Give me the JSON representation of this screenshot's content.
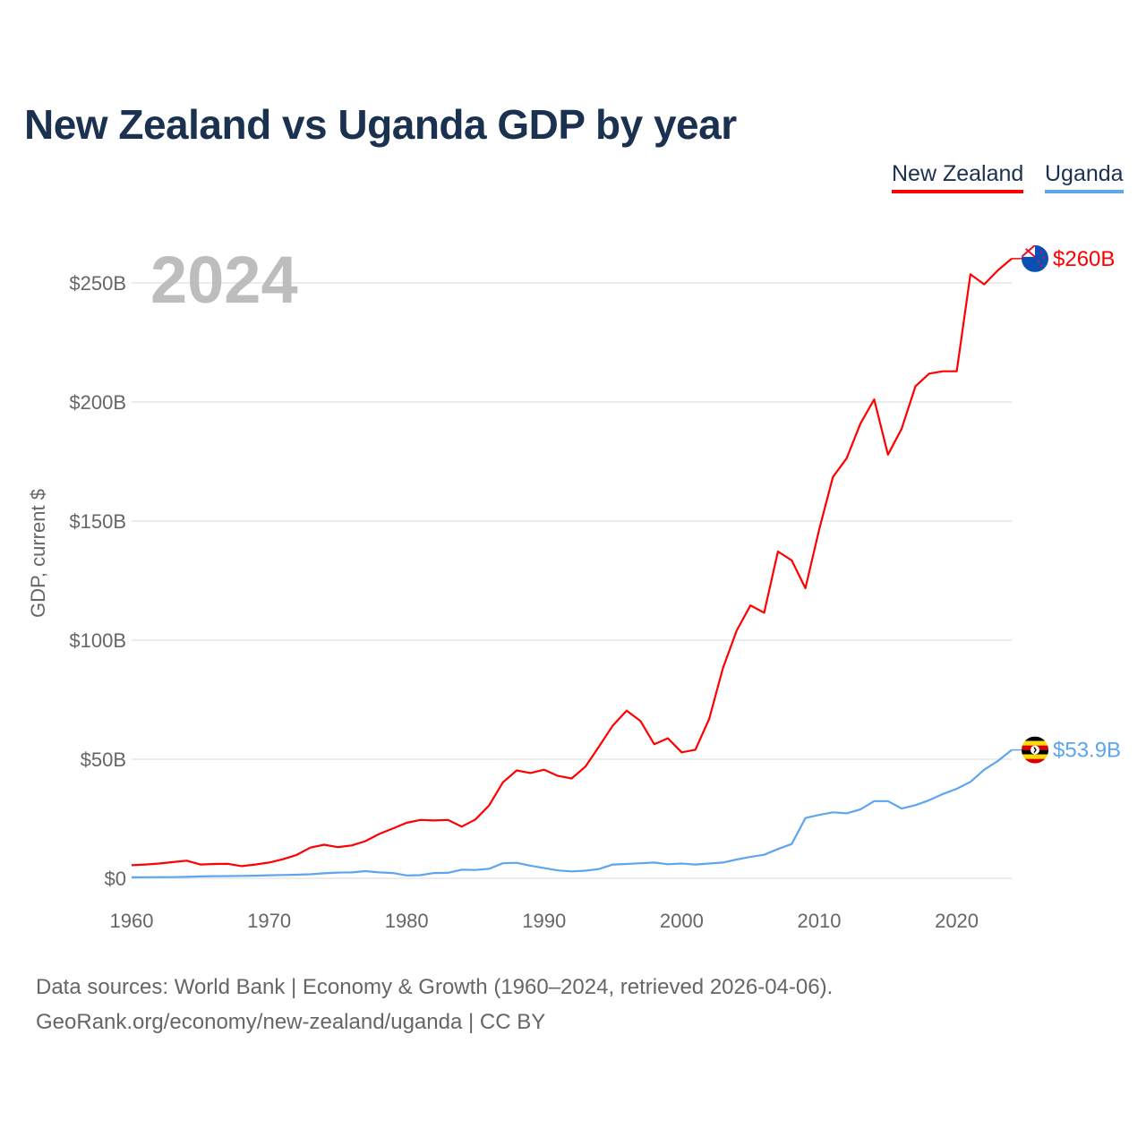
{
  "chart_data": {
    "type": "line",
    "title": "New Zealand vs Uganda GDP by year",
    "ylabel": "GDP, current $",
    "xlabel": "",
    "current_year_label": "2024",
    "xlim": [
      1960,
      2024
    ],
    "ylim": [
      0,
      260
    ],
    "x_ticks": [
      1960,
      1970,
      1980,
      1990,
      2000,
      2010,
      2020
    ],
    "y_ticks": [
      0,
      50,
      100,
      150,
      200,
      250
    ],
    "y_tick_labels": [
      "$0",
      "$50B",
      "$100B",
      "$150B",
      "$200B",
      "$250B"
    ],
    "grid": true,
    "legend_position": "top-right",
    "x": [
      1960,
      1961,
      1962,
      1963,
      1964,
      1965,
      1966,
      1967,
      1968,
      1969,
      1970,
      1971,
      1972,
      1973,
      1974,
      1975,
      1976,
      1977,
      1978,
      1979,
      1980,
      1981,
      1982,
      1983,
      1984,
      1985,
      1986,
      1987,
      1988,
      1989,
      1990,
      1991,
      1992,
      1993,
      1994,
      1995,
      1996,
      1997,
      1998,
      1999,
      2000,
      2001,
      2002,
      2003,
      2004,
      2005,
      2006,
      2007,
      2008,
      2009,
      2010,
      2011,
      2012,
      2013,
      2014,
      2015,
      2016,
      2017,
      2018,
      2019,
      2020,
      2021,
      2022,
      2023,
      2024
    ],
    "series": [
      {
        "name": "New Zealand",
        "color": "#ff0000",
        "end_label": "$260B",
        "flag": "new-zealand-flag-icon",
        "values": [
          5.5,
          5.8,
          6.2,
          6.8,
          7.4,
          5.8,
          6.0,
          6.1,
          5.1,
          5.8,
          6.6,
          8.0,
          9.8,
          12.9,
          14.1,
          13.1,
          13.8,
          15.6,
          18.6,
          20.9,
          23.3,
          24.5,
          24.3,
          24.5,
          21.7,
          24.7,
          30.6,
          40.3,
          45.3,
          44.2,
          45.6,
          43.0,
          41.9,
          46.9,
          55.4,
          64.2,
          70.4,
          66.1,
          56.3,
          58.8,
          52.9,
          54.0,
          66.9,
          88.3,
          104.0,
          114.6,
          111.5,
          137.2,
          133.5,
          121.8,
          146.5,
          168.5,
          176.4,
          190.9,
          201.1,
          177.9,
          188.8,
          206.6,
          211.9,
          212.9,
          212.9,
          253.6,
          249.4,
          255.3,
          260.2
        ]
      },
      {
        "name": "Uganda",
        "color": "#5ea5ee",
        "end_label": "$53.9B",
        "flag": "uganda-flag-icon",
        "values": [
          0.42,
          0.45,
          0.47,
          0.5,
          0.6,
          0.8,
          0.9,
          0.95,
          1.0,
          1.1,
          1.26,
          1.4,
          1.5,
          1.7,
          2.1,
          2.4,
          2.5,
          3.0,
          2.5,
          2.2,
          1.2,
          1.3,
          2.2,
          2.3,
          3.6,
          3.5,
          4.0,
          6.3,
          6.5,
          5.3,
          4.3,
          3.3,
          2.9,
          3.2,
          3.9,
          5.8,
          6.0,
          6.3,
          6.6,
          5.9,
          6.2,
          5.8,
          6.2,
          6.6,
          7.9,
          9.0,
          9.9,
          12.3,
          14.4,
          25.3,
          26.6,
          27.7,
          27.3,
          28.9,
          32.4,
          32.4,
          29.3,
          30.7,
          32.8,
          35.4,
          37.6,
          40.5,
          45.6,
          49.3,
          53.9
        ]
      }
    ]
  },
  "footer": {
    "line1": "Data sources: World Bank | Economy & Growth (1960–2024, retrieved 2026-04-06).",
    "line2": "GeoRank.org/economy/new-zealand/uganda | CC BY"
  }
}
